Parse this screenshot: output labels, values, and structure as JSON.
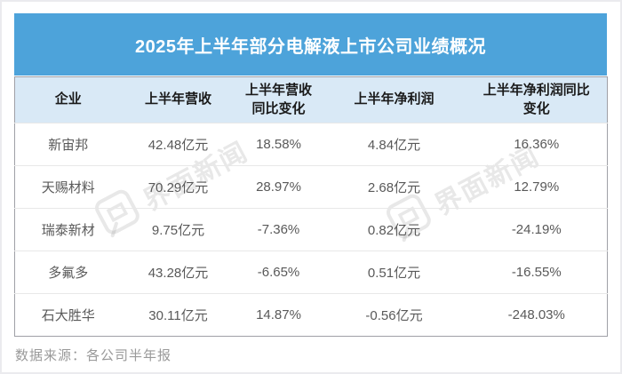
{
  "header": {
    "title": "2025年上半年部分电解液上市公司业绩概况"
  },
  "chart_data": {
    "type": "table",
    "title": "2025年上半年部分电解液上市公司业绩概况",
    "columns": [
      "企业",
      "上半年营收",
      "上半年营收\n同比变化",
      "上半年净利润",
      "上半年净利润同比\n变化"
    ],
    "rows": [
      [
        "新宙邦",
        "42.48亿元",
        "18.58%",
        "4.84亿元",
        "16.36%"
      ],
      [
        "天赐材料",
        "70.29亿元",
        "28.97%",
        "2.68亿元",
        "12.79%"
      ],
      [
        "瑞泰新材",
        "9.75亿元",
        "-7.36%",
        "0.82亿元",
        "-24.19%"
      ],
      [
        "多氟多",
        "43.28亿元",
        "-6.65%",
        "0.51亿元",
        "-16.55%"
      ],
      [
        "石大胜华",
        "30.11亿元",
        "14.87%",
        "-0.56亿元",
        "-248.03%"
      ]
    ],
    "units": {
      "revenue": "亿元",
      "net_profit": "亿元",
      "change": "%"
    }
  },
  "footer": {
    "source_label": "数据来源：各公司半年报"
  },
  "watermark": {
    "text": "界面新闻"
  },
  "colors": {
    "title_bar_bg": "#4da3da",
    "title_text": "#ffffff",
    "column_header_bg": "#d9e9f6",
    "column_header_text": "#1a1a1a",
    "body_text": "#595959",
    "table_border": "#9fa0a6",
    "row_divider": "#e8e8e8",
    "source_text": "#9a9a9a"
  }
}
